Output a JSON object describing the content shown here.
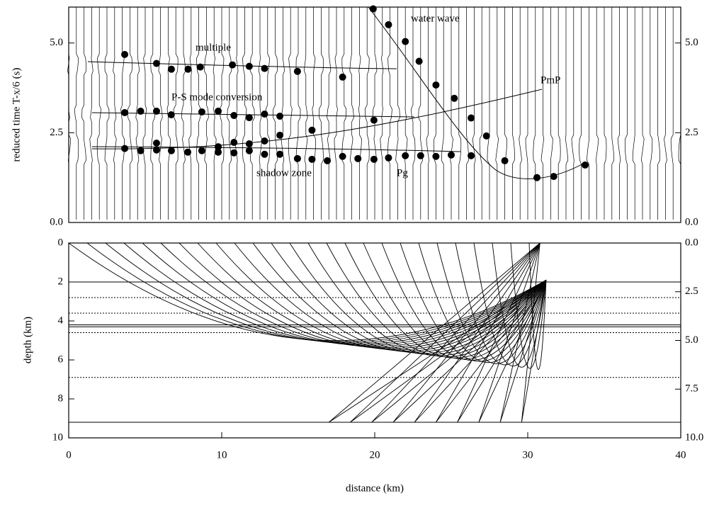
{
  "chart_data": [
    {
      "type": "scatter",
      "ylabel": "reduced time T-x/6 (s)",
      "xlim": [
        0,
        40
      ],
      "ylim": [
        0,
        6
      ],
      "yticks": [
        {
          "value": 0,
          "label": "0.0"
        },
        {
          "value": 2.5,
          "label": "2.5"
        },
        {
          "value": 5,
          "label": "5.0"
        }
      ],
      "annotations": [
        "water wave",
        "multiple",
        "P-S mode conversion",
        "PmP",
        "shadow zone",
        "Pg"
      ],
      "color": "#000000",
      "x": [
        3.66,
        5.74,
        6.71,
        7.8,
        8.6,
        10.7,
        11.8,
        12.8,
        14.95,
        17.9,
        3.66,
        4.7,
        5.74,
        6.7,
        8.7,
        9.77,
        10.8,
        11.8,
        12.8,
        13.8,
        15.9,
        19.95,
        13.8,
        5.74,
        9.77,
        11.8,
        12.8,
        10.8,
        3.66,
        4.7,
        5.74,
        6.71,
        7.78,
        8.7,
        9.77,
        10.8,
        11.8,
        12.8,
        13.8,
        14.95,
        15.9,
        16.9,
        17.9,
        18.9,
        19.95,
        20.9,
        22.0,
        23.0,
        24.0,
        25.0,
        19.9,
        20.9,
        22.0,
        22.9,
        24.0,
        25.2,
        26.3,
        27.3,
        28.5,
        30.6,
        31.7,
        33.75,
        26.3
      ],
      "values": [
        4.68,
        4.43,
        4.27,
        4.27,
        4.33,
        4.39,
        4.35,
        4.29,
        4.21,
        4.05,
        3.06,
        3.1,
        3.1,
        3.0,
        3.08,
        3.1,
        2.98,
        2.92,
        3.02,
        2.96,
        2.57,
        2.85,
        2.43,
        2.21,
        2.11,
        2.19,
        2.27,
        2.23,
        2.06,
        2.0,
        2.02,
        2.0,
        1.96,
        2.0,
        1.96,
        1.94,
        2.0,
        1.9,
        1.9,
        1.78,
        1.76,
        1.72,
        1.84,
        1.78,
        1.76,
        1.8,
        1.86,
        1.86,
        1.84,
        1.88,
        5.95,
        5.51,
        5.04,
        4.49,
        3.83,
        3.46,
        2.91,
        2.41,
        1.72,
        1.25,
        1.28,
        1.6,
        1.86
      ]
    },
    {
      "type": "ray",
      "xlabel": "distance (km)",
      "ylabel": "depth (km)",
      "xlim": [
        0,
        40
      ],
      "xticks": [
        0,
        10,
        20,
        30,
        40
      ],
      "ylim": [
        0,
        10
      ],
      "yreverse": true,
      "yticks": [
        0,
        2,
        4,
        6,
        8,
        10
      ],
      "y2lim": [
        0,
        10
      ],
      "y2ticks": [
        {
          "value": 0,
          "label": "0.0"
        },
        {
          "value": 2.5,
          "label": "2.5"
        },
        {
          "value": 5,
          "label": "5.0"
        },
        {
          "value": 7.5,
          "label": "7.5"
        },
        {
          "value": 10,
          "label": "10.0"
        }
      ]
    }
  ]
}
